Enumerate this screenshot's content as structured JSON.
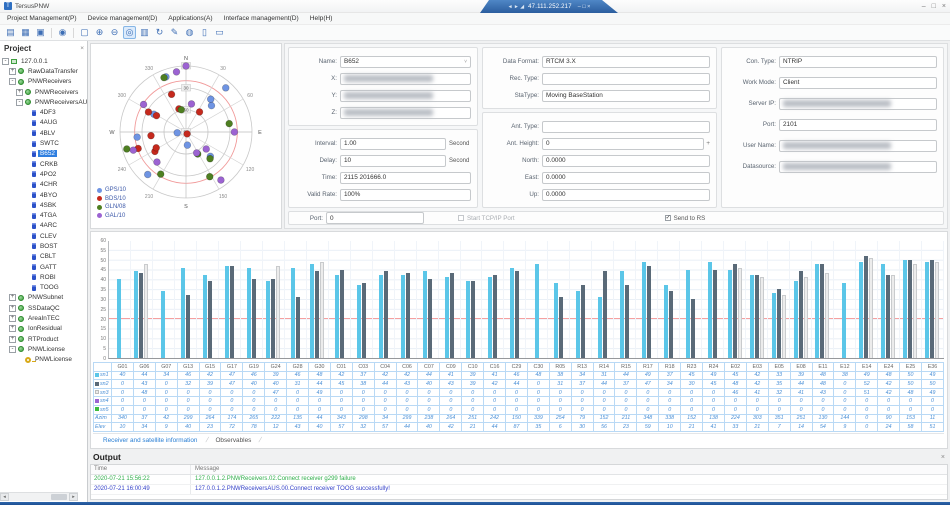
{
  "window": {
    "title": "TersusPNW",
    "banner_ip": "47.111.252.217",
    "banner_nav_icons": [
      "◄",
      "►",
      "◢"
    ],
    "banner_controls": [
      "–",
      "□",
      "×"
    ],
    "controls": [
      "–",
      "□",
      "×"
    ]
  },
  "menu": {
    "items": [
      "Project Management(P)",
      "Device management(D)",
      "Applications(A)",
      "Interface management(D)",
      "Help(H)"
    ]
  },
  "toolbar": {
    "icons": [
      {
        "name": "new-file-icon",
        "glyph": "▤"
      },
      {
        "name": "open-project-icon",
        "glyph": "▦"
      },
      {
        "name": "save-icon",
        "glyph": "▣"
      },
      {
        "name": "sep",
        "sep": true
      },
      {
        "name": "settings-globe-icon",
        "glyph": "◉"
      },
      {
        "name": "sep",
        "sep": true
      },
      {
        "name": "marquee-select-icon",
        "glyph": "▢"
      },
      {
        "name": "zoom-in-icon",
        "glyph": "⊕"
      },
      {
        "name": "zoom-out-icon",
        "glyph": "⊖"
      },
      {
        "name": "target-view-icon",
        "glyph": "◎",
        "active": true
      },
      {
        "name": "chart-view-icon",
        "glyph": "▥"
      },
      {
        "name": "refresh-icon",
        "glyph": "↻"
      },
      {
        "name": "edit-icon",
        "glyph": "✎"
      },
      {
        "name": "probe-icon",
        "glyph": "◍"
      },
      {
        "name": "device-list-icon",
        "glyph": "▯"
      },
      {
        "name": "new-window-icon",
        "glyph": "▭"
      }
    ]
  },
  "sidebar": {
    "title": "Project",
    "close": "×",
    "tree": [
      {
        "label": "127.0.0.1",
        "depth": 0,
        "icon": "computer",
        "expander": "-"
      },
      {
        "label": "RawDataTransfer",
        "depth": 1,
        "icon": "module",
        "expander": "+"
      },
      {
        "label": "PNWReceivers",
        "depth": 1,
        "icon": "module",
        "expander": "-"
      },
      {
        "label": "PNWReceivers",
        "depth": 2,
        "icon": "module",
        "expander": "+"
      },
      {
        "label": "PNWReceiversAUS",
        "depth": 2,
        "icon": "module",
        "expander": "-"
      },
      {
        "label": "4DF3",
        "depth": 3,
        "icon": "receiver"
      },
      {
        "label": "4AUG",
        "depth": 3,
        "icon": "receiver"
      },
      {
        "label": "4BLV",
        "depth": 3,
        "icon": "receiver"
      },
      {
        "label": "SWTC",
        "depth": 3,
        "icon": "receiver"
      },
      {
        "label": "B652",
        "depth": 3,
        "icon": "receiver",
        "selected": true
      },
      {
        "label": "CRKB",
        "depth": 3,
        "icon": "receiver"
      },
      {
        "label": "4PO2",
        "depth": 3,
        "icon": "receiver"
      },
      {
        "label": "4CHR",
        "depth": 3,
        "icon": "receiver"
      },
      {
        "label": "4BYO",
        "depth": 3,
        "icon": "receiver"
      },
      {
        "label": "4SBK",
        "depth": 3,
        "icon": "receiver"
      },
      {
        "label": "4TGA",
        "depth": 3,
        "icon": "receiver"
      },
      {
        "label": "4ARC",
        "depth": 3,
        "icon": "receiver"
      },
      {
        "label": "CLEV",
        "depth": 3,
        "icon": "receiver"
      },
      {
        "label": "BOST",
        "depth": 3,
        "icon": "receiver"
      },
      {
        "label": "CBLT",
        "depth": 3,
        "icon": "receiver"
      },
      {
        "label": "GATT",
        "depth": 3,
        "icon": "receiver"
      },
      {
        "label": "ROBI",
        "depth": 3,
        "icon": "receiver"
      },
      {
        "label": "TOOG",
        "depth": 3,
        "icon": "receiver"
      },
      {
        "label": "PNWSubnet",
        "depth": 1,
        "icon": "module",
        "expander": "+"
      },
      {
        "label": "SSDataQC",
        "depth": 1,
        "icon": "module",
        "expander": "+"
      },
      {
        "label": "AreaInTEC",
        "depth": 1,
        "icon": "module",
        "expander": "+"
      },
      {
        "label": "IonResidual",
        "depth": 1,
        "icon": "module",
        "expander": "+"
      },
      {
        "label": "RTProduct",
        "depth": 1,
        "icon": "module",
        "expander": "+"
      },
      {
        "label": "PNWLicense",
        "depth": 1,
        "icon": "module",
        "expander": "-"
      },
      {
        "label": "PNWLicense",
        "depth": 2,
        "icon": "key"
      }
    ]
  },
  "skyplot": {
    "compass": [
      "N",
      "30",
      "60",
      "E",
      "120",
      "150",
      "S",
      "210",
      "240",
      "W",
      "300",
      "330"
    ],
    "elev_rings": [
      0,
      30,
      60,
      90
    ],
    "mask_elevation": 20,
    "mask_color": "#f19999",
    "legend": [
      {
        "label": "GPS/10",
        "color": "#6f94e3"
      },
      {
        "label": "BDS/10",
        "color": "#c5291d"
      },
      {
        "label": "GLN/08",
        "color": "#4e7f21"
      },
      {
        "label": "GAL/10",
        "color": "#9c63d2"
      }
    ],
    "constellation_colors": {
      "G": "#6f94e3",
      "C": "#c5291d",
      "R": "#4e7f21",
      "E": "#9c63d2"
    }
  },
  "form": {
    "panel_identity": [
      {
        "label": "Name",
        "value": "B652",
        "type": "select"
      },
      {
        "label": "X",
        "blurred": true
      },
      {
        "label": "Y",
        "blurred": true
      },
      {
        "label": "Z",
        "blurred": true
      }
    ],
    "panel_timing": [
      {
        "label": "Interval",
        "value": "1.00",
        "unit": "Second"
      },
      {
        "label": "Delay",
        "value": "10",
        "unit": "Second"
      },
      {
        "label": "Time",
        "value": "2115 201666.0"
      },
      {
        "label": "Valid Rate",
        "value": "100%"
      }
    ],
    "panel_format": [
      {
        "label": "Data Format",
        "value": "RTCM 3.X"
      },
      {
        "label": "Rec. Type",
        "value": ""
      },
      {
        "label": "StaType",
        "value": "Moving BaseStation"
      }
    ],
    "panel_antenna": [
      {
        "label": "Ant. Type",
        "value": ""
      },
      {
        "label": "Ant. Height",
        "value": "0",
        "spinner": "+"
      },
      {
        "label": "North",
        "value": "0.0000"
      },
      {
        "label": "East",
        "value": "0.0000"
      },
      {
        "label": "Up",
        "value": "0.0000"
      }
    ],
    "panel_connection": [
      {
        "label": "Con. Type",
        "value": "NTRIP"
      },
      {
        "label": "Work Mode",
        "value": "Client"
      },
      {
        "label": "Server IP",
        "blurred": true
      },
      {
        "label": "Port",
        "value": "2101"
      },
      {
        "label": "User Name",
        "blurred": true
      },
      {
        "label": "Datasource",
        "blurred": true
      }
    ],
    "bottom": {
      "port": {
        "label": "Port",
        "value": "0"
      },
      "checkboxes": [
        {
          "label": "Start TCP/IP Port",
          "checked": false,
          "disabled": true
        },
        {
          "label": "Send to RS",
          "checked": true,
          "disabled": false
        }
      ]
    }
  },
  "chart_data": {
    "type": "bar",
    "title": "",
    "xlabel": "",
    "ylabel": "",
    "ylim": [
      0,
      60
    ],
    "ytick_step": 5,
    "grid": true,
    "legend_position": "none",
    "threshold_line": {
      "value": 20,
      "color": "#f5a0a0"
    },
    "categories": [
      "G01",
      "G06",
      "G07",
      "G13",
      "G15",
      "G17",
      "G19",
      "G24",
      "G28",
      "G30",
      "C01",
      "C03",
      "C04",
      "C06",
      "C07",
      "C09",
      "C10",
      "C16",
      "C29",
      "C30",
      "R05",
      "R13",
      "R14",
      "R15",
      "R17",
      "R18",
      "R23",
      "R24",
      "E02",
      "E03",
      "E05",
      "E08",
      "E11",
      "E12",
      "E14",
      "E24",
      "E25",
      "E36"
    ],
    "series": [
      {
        "name": "sn1",
        "color": "#5bc6e8",
        "values": [
          40,
          44,
          34,
          46,
          42,
          47,
          46,
          39,
          46,
          48,
          42,
          37,
          42,
          42,
          44,
          41,
          39,
          41,
          46,
          48,
          38,
          34,
          31,
          44,
          49,
          37,
          45,
          49,
          45,
          42,
          33,
          39,
          48,
          38,
          49,
          48,
          50,
          49
        ]
      },
      {
        "name": "sn2",
        "color": "#5a6a78",
        "values": [
          0,
          43,
          0,
          32,
          39,
          47,
          40,
          40,
          31,
          44,
          45,
          38,
          44,
          43,
          40,
          43,
          39,
          42,
          44,
          0,
          31,
          37,
          44,
          37,
          47,
          34,
          30,
          45,
          48,
          42,
          35,
          44,
          48,
          0,
          52,
          42,
          50,
          50
        ]
      },
      {
        "name": "sn3",
        "color": "#ececec",
        "values": [
          0,
          48,
          0,
          0,
          0,
          0,
          0,
          47,
          0,
          49,
          0,
          0,
          0,
          0,
          0,
          0,
          0,
          0,
          0,
          0,
          0,
          0,
          0,
          0,
          0,
          0,
          0,
          0,
          46,
          41,
          32,
          41,
          43,
          0,
          51,
          42,
          48,
          49
        ]
      },
      {
        "name": "sn4",
        "color": "#9c63d2",
        "values": [
          0,
          0,
          0,
          0,
          0,
          0,
          0,
          0,
          0,
          0,
          0,
          0,
          0,
          0,
          0,
          0,
          0,
          0,
          0,
          0,
          0,
          0,
          0,
          0,
          0,
          0,
          0,
          0,
          0,
          0,
          0,
          0,
          0,
          0,
          0,
          0,
          0,
          0
        ]
      },
      {
        "name": "sn5",
        "color": "#3dbd3d",
        "values": [
          0,
          0,
          0,
          0,
          0,
          0,
          0,
          0,
          0,
          0,
          0,
          0,
          0,
          0,
          0,
          0,
          0,
          0,
          0,
          0,
          0,
          0,
          0,
          0,
          0,
          0,
          0,
          0,
          0,
          0,
          0,
          0,
          0,
          0,
          0,
          0,
          0,
          0
        ]
      }
    ],
    "azimuth": [
      340,
      37,
      42,
      299,
      264,
      174,
      265,
      222,
      135,
      44,
      343,
      298,
      34,
      299,
      238,
      264,
      251,
      242,
      150,
      339,
      254,
      79,
      152,
      211,
      348,
      338,
      152,
      138,
      224,
      303,
      351,
      251,
      130,
      144,
      0,
      90,
      153,
      11
    ],
    "elevation": [
      10,
      34,
      9,
      40,
      23,
      72,
      78,
      12,
      43,
      40,
      57,
      32,
      57,
      44,
      40,
      42,
      21,
      44,
      87,
      35,
      6,
      30,
      56,
      23,
      59,
      10,
      21,
      41,
      33,
      21,
      7,
      14,
      54,
      9,
      0,
      24,
      58,
      51
    ]
  },
  "sat_table": {
    "rows": [
      {
        "label": "sn1",
        "swatch": "#5bc6e8",
        "key": "sn1"
      },
      {
        "label": "sn2",
        "swatch": "#5a6a78",
        "key": "sn2"
      },
      {
        "label": "sn3",
        "swatch": "#ececec",
        "key": "sn3"
      },
      {
        "label": "sn4",
        "swatch": "#9c63d2",
        "key": "sn4"
      },
      {
        "label": "sn5",
        "swatch": "#3dbd3d",
        "key": "sn5"
      },
      {
        "label": "Azim",
        "key": "azimuth"
      },
      {
        "label": "Elev",
        "key": "elevation"
      }
    ]
  },
  "tabs": {
    "items": [
      "Receiver and satellite information",
      "Observables"
    ],
    "active_index": 0
  },
  "output": {
    "title": "Output",
    "close": "×",
    "columns": [
      "Time",
      "Message"
    ],
    "rows": [
      {
        "time": "2020-07-21 15:56:22",
        "message": "127.0.0.1.2.PNWReceivers.02.Connect receiver g299 failure",
        "color": "#2fae4a"
      },
      {
        "time": "2020-07-21 16:00:49",
        "message": "127.0.0.1.2.PNWReceiversAUS.00.Connect receiver TOOG successfully!",
        "color": "#3340c8"
      }
    ]
  }
}
